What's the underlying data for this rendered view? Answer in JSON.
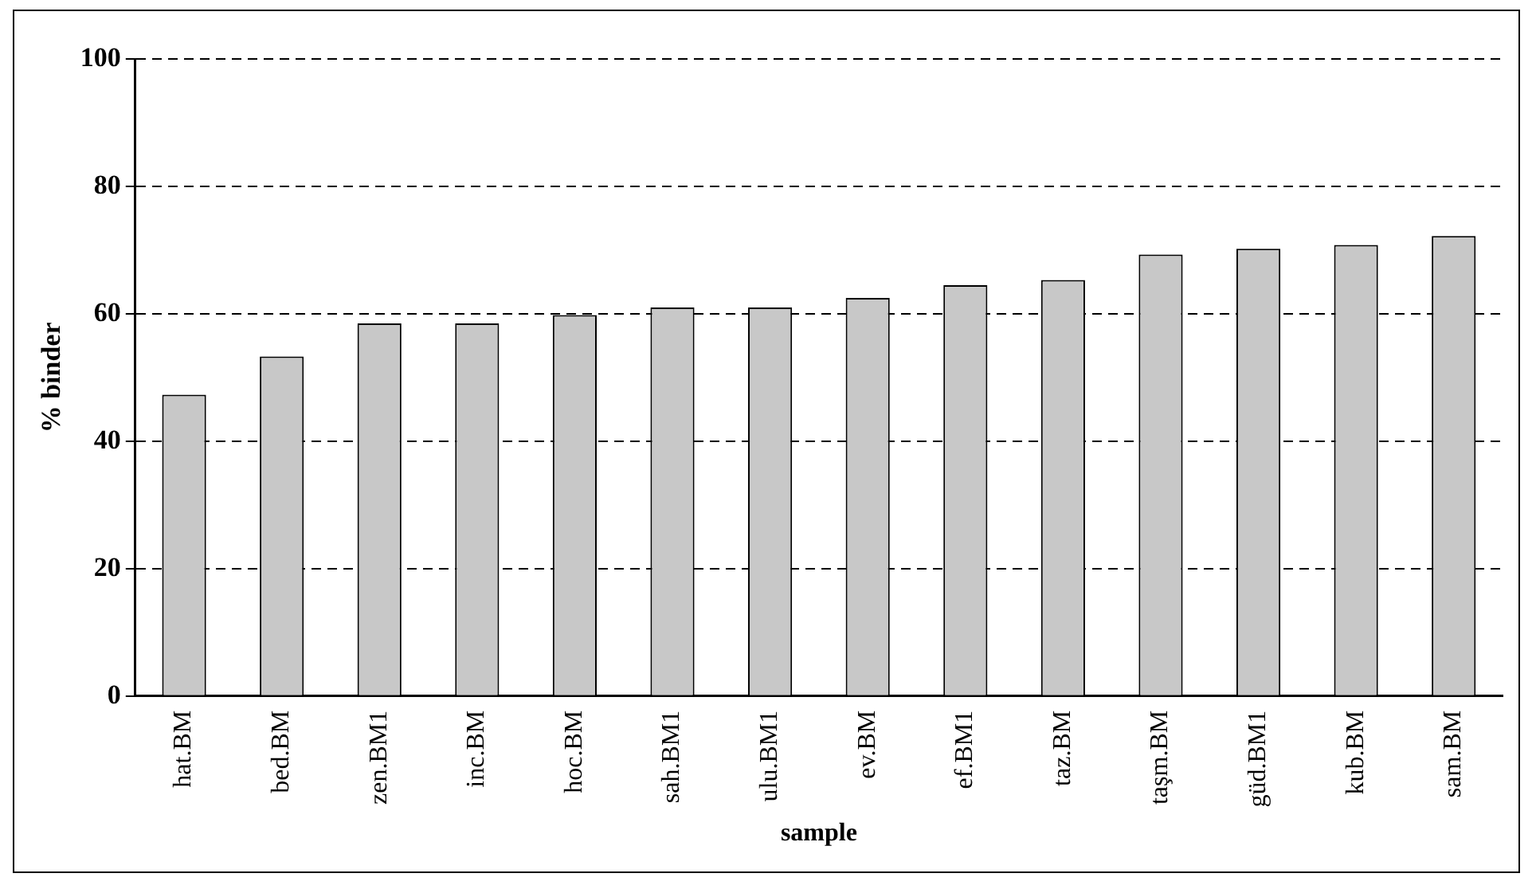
{
  "chart_data": {
    "type": "bar",
    "xlabel": "sample",
    "ylabel": "% binder",
    "categories": [
      "hat.BM",
      "bed.BM",
      "zen.BM1",
      "inc.BM",
      "hoc.BM",
      "sah.BM1",
      "ulu.BM1",
      "ev.BM",
      "ef.BM1",
      "taz.BM",
      "taşm.BM",
      "güd.BM1",
      "kub.BM",
      "sam.BM"
    ],
    "values": [
      47.3,
      53.3,
      58.5,
      58.5,
      59.8,
      61,
      61,
      62.5,
      64.5,
      65.3,
      69.3,
      70.2,
      70.8,
      72.2
    ],
    "color": "#c8c8c8",
    "ylim": [
      0,
      100
    ],
    "yticks": [
      0,
      20,
      40,
      60,
      80,
      100
    ],
    "grid": "y"
  }
}
